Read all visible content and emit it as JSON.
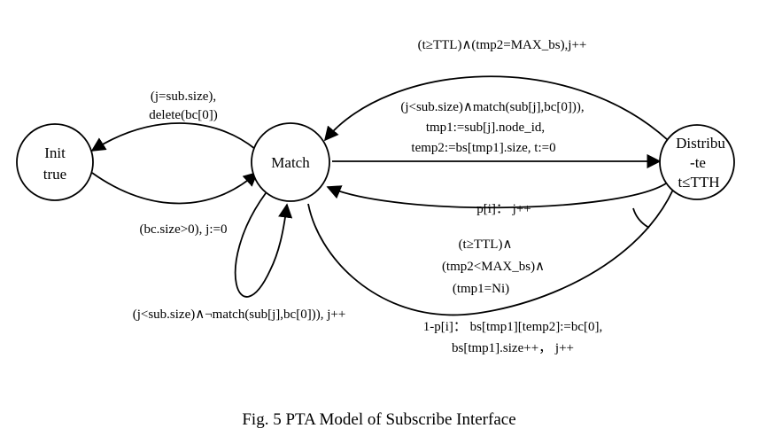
{
  "nodes": {
    "init": {
      "line1": "Init",
      "line2": "true"
    },
    "match": {
      "line1": "Match"
    },
    "distribute": {
      "line1": "Distribu",
      "line2": "-te",
      "line3": "t≤TTH"
    }
  },
  "edges": {
    "match_to_init": {
      "line1": "(j=sub.size),",
      "line2": "delete(bc[0])"
    },
    "init_to_match": {
      "line1": "(bc.size>0), j:=0"
    },
    "match_self": {
      "line1": "(j<sub.size)∧¬match(sub[j],bc[0])), j++"
    },
    "dist_to_match_top": {
      "line1": "(t≥TTL)∧(tmp2=MAX_bs),j++"
    },
    "match_to_dist": {
      "line1": "(j<sub.size)∧match(sub[j],bc[0])),",
      "line2": "tmp1:=sub[j].node_id,",
      "line3": "temp2:=bs[tmp1].size, t:=0"
    },
    "dist_to_match_prob": {
      "line1": "p[i]： j++"
    },
    "dist_to_match_bottom": {
      "guard1": "(t≥TTL)∧",
      "guard2": "(tmp2<MAX_bs)∧",
      "guard3": "(tmp1=Ni)",
      "line1": "1-p[i]： bs[tmp1][temp2]:=bc[0],",
      "line2": "bs[tmp1].size++， j++"
    }
  },
  "caption": "Fig. 5 PTA Model of Subscribe Interface"
}
